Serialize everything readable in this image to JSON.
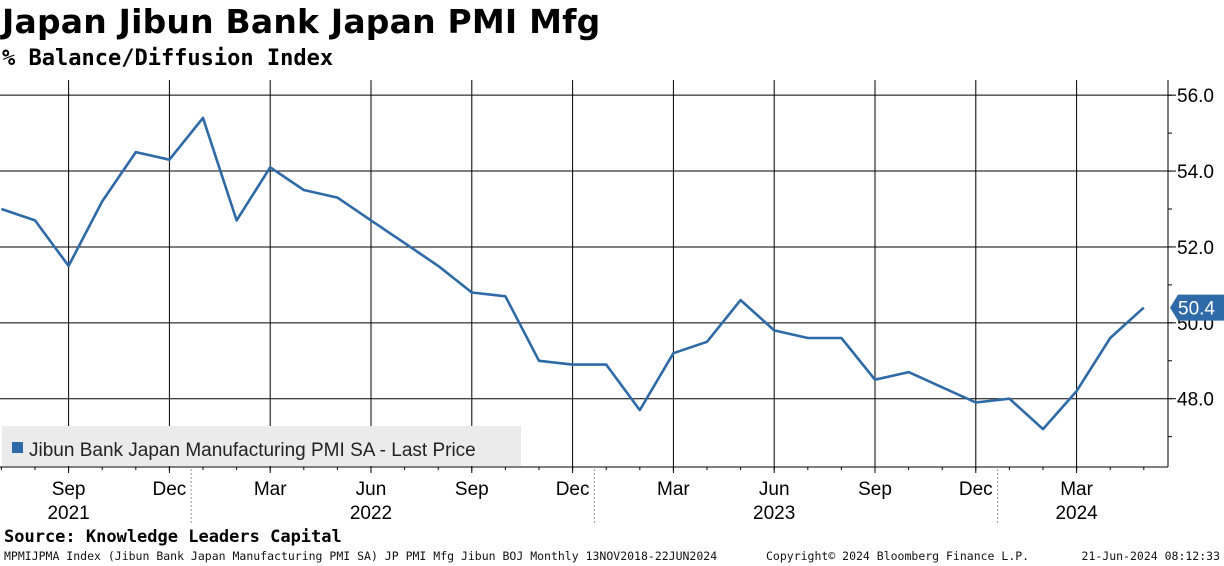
{
  "header": {
    "title": "Japan Jibun Bank Japan PMI Mfg",
    "subtitle": "% Balance/Diffusion Index"
  },
  "footer": {
    "source": "Source: Knowledge Leaders Capital",
    "description": "MPMIJPMA Index (Jibun Bank Japan Manufacturing PMI SA) JP PMI Mfg Jibun BOJ  Monthly 13NOV2018-22JUN2024",
    "copyright": "Copyright© 2024 Bloomberg Finance L.P.",
    "timestamp": "21-Jun-2024 08:12:33"
  },
  "colors": {
    "line": "#2e6aa8",
    "grid": "#000000",
    "legend_bg": "#ebebeb",
    "last_price_bg": "#2e6aa8"
  },
  "chart_data": {
    "type": "line",
    "ylim": [
      46.2,
      56.4
    ],
    "y_ticks": [
      "56.0",
      "54.0",
      "52.0",
      "50.0",
      "48.0"
    ],
    "y_tick_values": [
      56,
      54,
      52,
      50,
      48
    ],
    "y_axis_side": "right",
    "x_ticks": [
      {
        "label": "Sep",
        "date": "2021-09"
      },
      {
        "label": "Dec",
        "date": "2021-12"
      },
      {
        "label": "Mar",
        "date": "2022-03"
      },
      {
        "label": "Jun",
        "date": "2022-06"
      },
      {
        "label": "Sep",
        "date": "2022-09"
      },
      {
        "label": "Dec",
        "date": "2022-12"
      },
      {
        "label": "Mar",
        "date": "2023-03"
      },
      {
        "label": "Jun",
        "date": "2023-06"
      },
      {
        "label": "Sep",
        "date": "2023-09"
      },
      {
        "label": "Dec",
        "date": "2023-12"
      },
      {
        "label": "Mar",
        "date": "2024-03"
      }
    ],
    "year_labels": [
      {
        "label": "2021",
        "date": "2021-09"
      },
      {
        "label": "2022",
        "date": "2022-06"
      },
      {
        "label": "2023",
        "date": "2023-06"
      },
      {
        "label": "2024",
        "date": "2024-03"
      }
    ],
    "year_separators": [
      "2022-01",
      "2023-01",
      "2024-01"
    ],
    "series": [
      {
        "name": "Jibun Bank Japan Manufacturing PMI SA - Last Price",
        "x": [
          "2021-07",
          "2021-08",
          "2021-09",
          "2021-10",
          "2021-11",
          "2021-12",
          "2022-01",
          "2022-02",
          "2022-03",
          "2022-04",
          "2022-05",
          "2022-06",
          "2022-07",
          "2022-08",
          "2022-09",
          "2022-10",
          "2022-11",
          "2022-12",
          "2023-01",
          "2023-02",
          "2023-03",
          "2023-04",
          "2023-05",
          "2023-06",
          "2023-07",
          "2023-08",
          "2023-09",
          "2023-10",
          "2023-11",
          "2023-12",
          "2024-01",
          "2024-02",
          "2024-03",
          "2024-04",
          "2024-05"
        ],
        "values": [
          53.0,
          52.7,
          51.5,
          53.2,
          54.5,
          54.3,
          55.4,
          52.7,
          54.1,
          53.5,
          53.3,
          52.7,
          52.1,
          51.5,
          50.8,
          50.7,
          49.0,
          48.9,
          48.9,
          47.7,
          49.2,
          49.5,
          50.6,
          49.8,
          49.6,
          49.6,
          48.5,
          48.7,
          48.3,
          47.9,
          48.0,
          47.2,
          48.2,
          49.6,
          50.4
        ]
      }
    ],
    "last_price": "50.4",
    "legend_position": "bottom-left",
    "grid": true
  }
}
